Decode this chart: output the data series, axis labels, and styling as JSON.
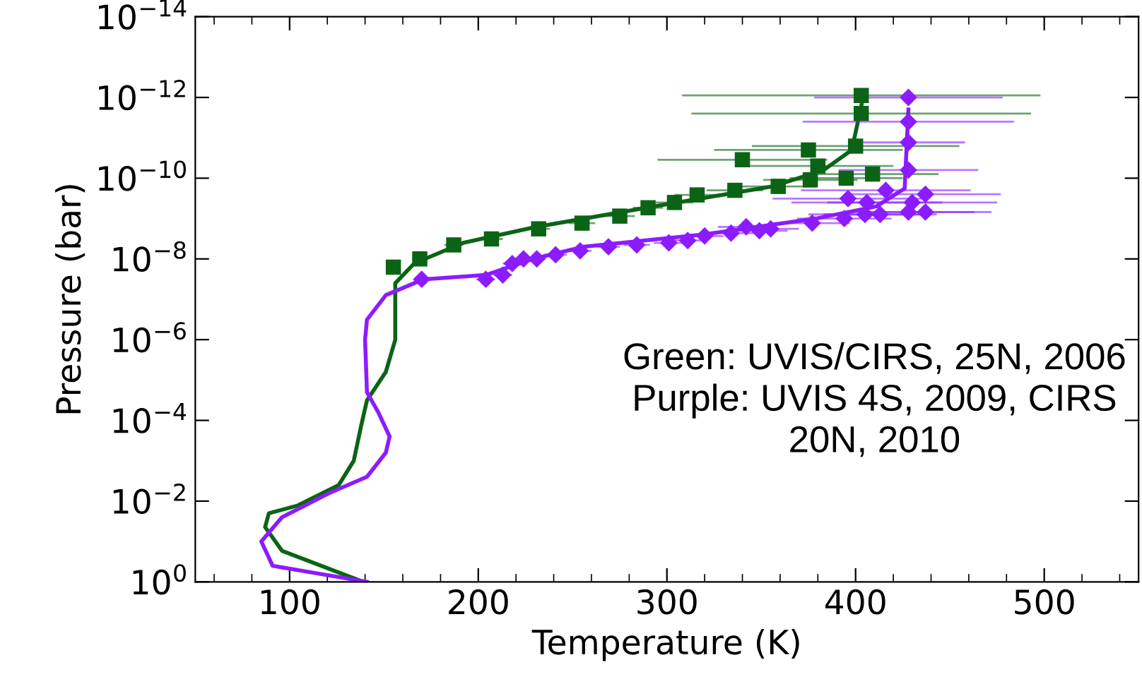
{
  "chart_data": {
    "type": "line",
    "xlabel": "Temperature (K)",
    "ylabel": "Pressure (bar)",
    "xlim": [
      50,
      550
    ],
    "xticks": [
      100,
      200,
      300,
      400,
      500
    ],
    "ylim": [
      1,
      1e-14
    ],
    "log": "y",
    "yticks": [
      {
        "value": 1e-14,
        "label": "10$^{−14}$"
      },
      {
        "value": 1e-12,
        "label": "10$^{−12}$"
      },
      {
        "value": 1e-10,
        "label": "10$^{−10}$"
      },
      {
        "value": 1e-08,
        "label": "10$^{−8}$"
      },
      {
        "value": 1e-06,
        "label": "10$^{−6}$"
      },
      {
        "value": 0.0001,
        "label": "10$^{−4}$"
      },
      {
        "value": 0.01,
        "label": "10$^{−2}$"
      },
      {
        "value": 1,
        "label": "10$^{0}$"
      }
    ],
    "grid": false,
    "legend": false,
    "series": [
      {
        "color": "#0b6415",
        "x": [
          139,
          96,
          87,
          89,
          104,
          126,
          134,
          138,
          141,
          151,
          156,
          156,
          166,
          192,
          231,
          293,
          356,
          383,
          398,
          404
        ],
        "values": [
          1,
          0.17,
          0.044,
          0.02,
          0.013,
          0.004,
          0.001,
          0.00013,
          3.2e-05,
          6.3e-06,
          1e-06,
          4e-08,
          1.3e-08,
          4e-09,
          1.6e-09,
          5e-10,
          1.6e-10,
          6.3e-11,
          2e-11,
          1e-12
        ]
      },
      {
        "color": "#8c1cff",
        "x": [
          141,
          91,
          85,
          96,
          121,
          141,
          151,
          153,
          147,
          141,
          140,
          141,
          151,
          171,
          204,
          229,
          256,
          319,
          379,
          411,
          426,
          428
        ],
        "values": [
          1,
          0.4,
          0.1,
          0.025,
          0.0063,
          0.0025,
          0.00063,
          0.00025,
          6.3e-05,
          2e-05,
          1e-06,
          3.2e-07,
          7.9e-08,
          3.2e-08,
          2.5e-08,
          1e-08,
          5e-09,
          2.5e-09,
          1e-09,
          5e-10,
          1.8e-10,
          2e-12
        ]
      },
      {
        "type": "scatter",
        "marker": "square",
        "color": "#0b6415",
        "x": [
          155,
          169,
          187,
          207,
          232,
          255,
          275,
          290,
          304,
          316,
          336,
          359,
          376,
          395,
          409,
          380,
          340,
          375,
          400,
          403,
          403
        ],
        "values": [
          1.6e-08,
          1e-08,
          4.5e-09,
          3.2e-09,
          1.8e-09,
          1.3e-09,
          8.7e-10,
          5.4e-10,
          4e-10,
          2.6e-10,
          2e-10,
          1.6e-10,
          1.1e-10,
          1e-10,
          7.9e-11,
          5e-11,
          3.5e-11,
          2e-11,
          1.6e-11,
          2.5e-12,
          8.9e-13
        ],
        "xerrors": [
          3,
          4,
          5,
          6,
          6,
          7,
          8,
          8,
          10,
          12,
          15,
          20,
          25,
          30,
          35,
          40,
          45,
          50,
          55,
          90,
          95
        ]
      },
      {
        "type": "scatter",
        "marker": "diamond",
        "color": "#8c1cff",
        "x": [
          170,
          204,
          213,
          218,
          224,
          231,
          241,
          254,
          269,
          284,
          301,
          311,
          320,
          334,
          342,
          349,
          355,
          377,
          394,
          405,
          413,
          428,
          437,
          396,
          406,
          416,
          430,
          437,
          428,
          428,
          428,
          428
        ],
        "values": [
          3.2e-08,
          3.2e-08,
          2.5e-08,
          1.3e-08,
          1e-08,
          1e-08,
          7.9e-09,
          6.3e-09,
          5e-09,
          4.5e-09,
          4e-09,
          3.5e-09,
          2.7e-09,
          2.3e-09,
          1.6e-09,
          2e-09,
          1.8e-09,
          1.3e-09,
          1e-09,
          7.9e-10,
          7.9e-10,
          6.9e-10,
          6.9e-10,
          3.2e-10,
          4e-10,
          2e-10,
          4e-10,
          2.5e-10,
          6.3e-11,
          1.3e-11,
          4e-12,
          1e-12
        ],
        "xerrors": [
          4,
          5,
          5,
          5,
          5,
          5,
          6,
          6,
          6,
          7,
          8,
          8,
          10,
          12,
          15,
          15,
          15,
          20,
          25,
          30,
          30,
          35,
          35,
          40,
          40,
          45,
          45,
          40,
          37,
          30,
          56,
          50
        ]
      }
    ],
    "annotations": [
      "Green: UVIS/CIRS, 25N, 2006\nPurple: UVIS 4S, 2009, CIRS\n20N, 2010"
    ]
  }
}
